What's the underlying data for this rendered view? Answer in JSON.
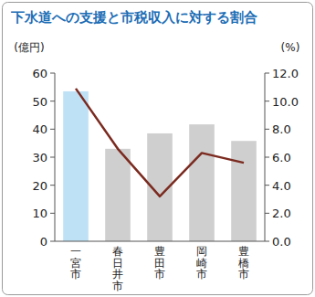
{
  "chart_data": {
    "type": "bar",
    "title": "下水道への支援と市税収入に対する割合",
    "y_label": "(億円)",
    "y2_label": "(%)",
    "categories": [
      "一宮市",
      "春日井市",
      "豊田市",
      "岡崎市",
      "豊橋市"
    ],
    "series": [
      {
        "type": "bar",
        "colors": [
          "#bfe1f6",
          "#cfcfcf",
          "#cfcfcf",
          "#cfcfcf",
          "#cfcfcf"
        ],
        "values": [
          53.5,
          33,
          38.5,
          41.7,
          35.8
        ]
      },
      {
        "type": "line",
        "axis": "y2",
        "color": "#7b2a1f",
        "values": [
          10.9,
          6.6,
          3.2,
          6.3,
          5.6
        ]
      }
    ],
    "ylim": [
      0,
      60
    ],
    "yticks": [
      0,
      10,
      20,
      30,
      40,
      50,
      60
    ],
    "y2lim": [
      0,
      12
    ],
    "y2ticks": [
      {
        "value": 0,
        "label": "0.0"
      },
      {
        "value": 2,
        "label": "2.0"
      },
      {
        "value": 4,
        "label": "4.0"
      },
      {
        "value": 6,
        "label": "6.0"
      },
      {
        "value": 8,
        "label": "8.0"
      },
      {
        "value": 10,
        "label": "10.0"
      },
      {
        "value": 12,
        "label": "12.0"
      }
    ],
    "grid": false
  }
}
